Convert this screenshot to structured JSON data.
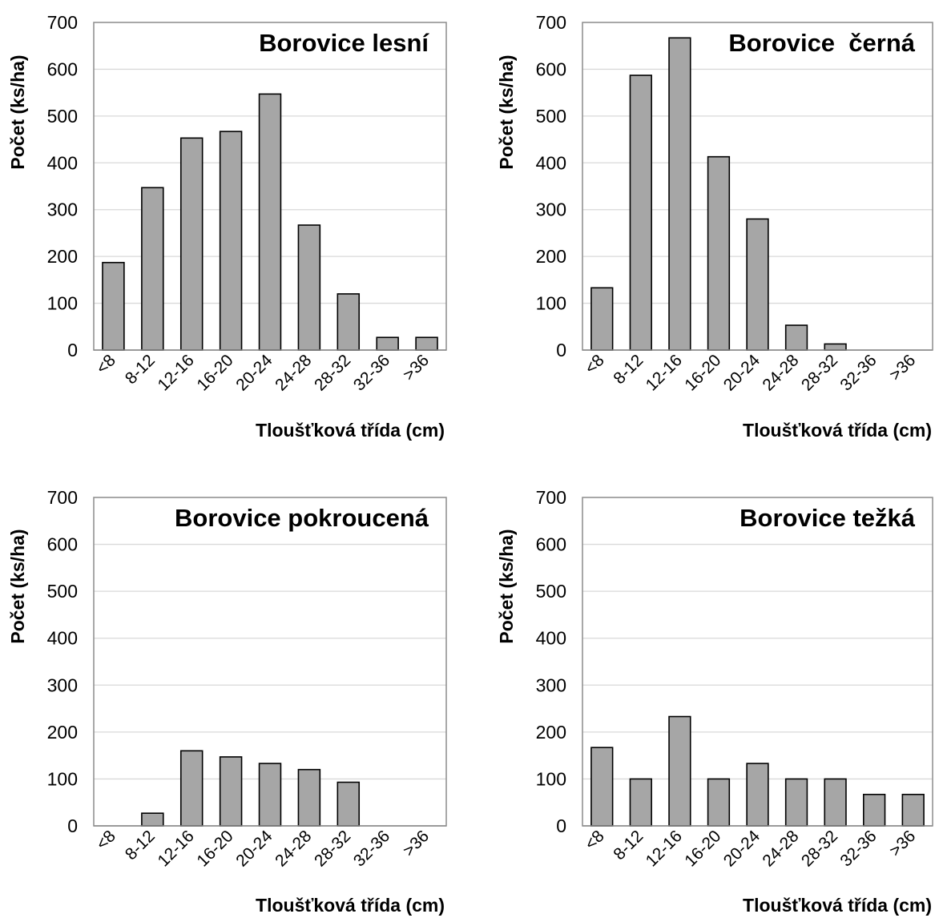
{
  "chart_data": [
    {
      "type": "bar",
      "title": "Borovice lesní",
      "xlabel": "Tloušťková třída (cm)",
      "ylabel": "Počet (ks/ha)",
      "categories": [
        "<8",
        "8-12",
        "12-16",
        "16-20",
        "20-24",
        "24-28",
        "28-32",
        "32-36",
        ">36"
      ],
      "values": [
        187,
        347,
        453,
        467,
        547,
        267,
        120,
        27,
        27
      ],
      "ylim": [
        0,
        700
      ],
      "yticks": [
        0,
        100,
        200,
        300,
        400,
        500,
        600,
        700
      ],
      "grid": true,
      "bar_color": "#a6a6a6"
    },
    {
      "type": "bar",
      "title": "Borovice  černá",
      "xlabel": "Tloušťková třída (cm)",
      "ylabel": "Počet (ks/ha)",
      "categories": [
        "<8",
        "8-12",
        "12-16",
        "16-20",
        "20-24",
        "24-28",
        "28-32",
        "32-36",
        ">36"
      ],
      "values": [
        133,
        587,
        667,
        413,
        280,
        53,
        13,
        0,
        0
      ],
      "ylim": [
        0,
        700
      ],
      "yticks": [
        0,
        100,
        200,
        300,
        400,
        500,
        600,
        700
      ],
      "grid": true,
      "bar_color": "#a6a6a6"
    },
    {
      "type": "bar",
      "title": "Borovice pokroucená",
      "xlabel": "Tloušťková třída (cm)",
      "ylabel": "Počet (ks/ha)",
      "categories": [
        "<8",
        "8-12",
        "12-16",
        "16-20",
        "20-24",
        "24-28",
        "28-32",
        "32-36",
        ">36"
      ],
      "values": [
        0,
        27,
        160,
        147,
        133,
        120,
        93,
        0,
        0
      ],
      "ylim": [
        0,
        700
      ],
      "yticks": [
        0,
        100,
        200,
        300,
        400,
        500,
        600,
        700
      ],
      "grid": true,
      "bar_color": "#a6a6a6"
    },
    {
      "type": "bar",
      "title": "Borovice težká",
      "xlabel": "Tloušťková třída (cm)",
      "ylabel": "Počet (ks/ha)",
      "categories": [
        "<8",
        "8-12",
        "12-16",
        "16-20",
        "20-24",
        "24-28",
        "28-32",
        "32-36",
        ">36"
      ],
      "values": [
        167,
        100,
        233,
        100,
        133,
        100,
        100,
        67,
        67
      ],
      "ylim": [
        0,
        700
      ],
      "yticks": [
        0,
        100,
        200,
        300,
        400,
        500,
        600,
        700
      ],
      "grid": true,
      "bar_color": "#a6a6a6"
    }
  ]
}
